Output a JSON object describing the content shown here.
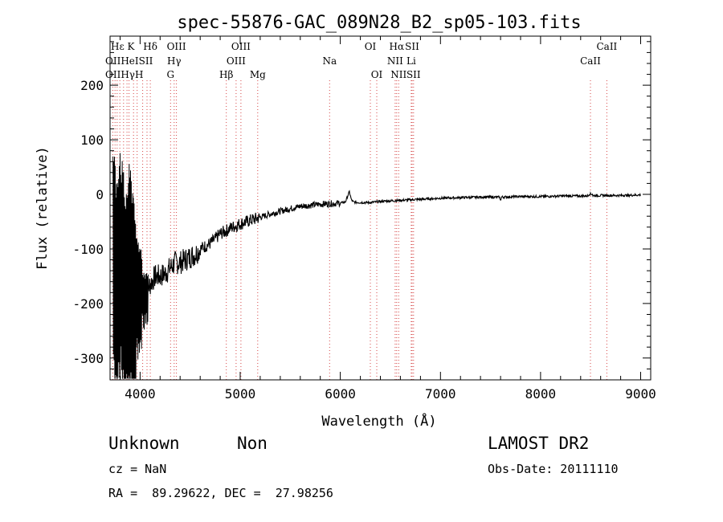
{
  "chart_data": {
    "type": "line",
    "title": "spec-55876-GAC_089N28_B2_sp05-103.fits",
    "xlabel": "Wavelength (Å)",
    "ylabel": "Flux (relative)",
    "xlim": [
      3700,
      9100
    ],
    "ylim": [
      -340,
      290
    ],
    "xticks": [
      4000,
      5000,
      6000,
      7000,
      8000,
      9000
    ],
    "yticks": [
      -300,
      -200,
      -100,
      0,
      100,
      200
    ],
    "grid": false,
    "series": [
      {
        "x": [
          3720,
          3760,
          3800,
          3850,
          3900,
          3950,
          4000,
          4050,
          4100,
          4150,
          4200,
          4250,
          4300,
          4350,
          4400,
          4450,
          4500,
          4550,
          4600,
          4650,
          4700,
          4750,
          4800,
          4850,
          4900,
          4950,
          5000,
          5100,
          5200,
          5300,
          5400,
          5500,
          5600,
          5700,
          5800,
          5900,
          6000,
          6050,
          6090,
          6110,
          6130,
          6200,
          6300,
          6400,
          6500,
          6600,
          6700,
          6800,
          6900,
          7000,
          7200,
          7400,
          7600,
          7800,
          8000,
          8200,
          8400,
          8600,
          8800,
          9000
        ],
        "y": [
          -30,
          -120,
          -60,
          -150,
          -100,
          -160,
          -170,
          -180,
          -165,
          -150,
          -150,
          -145,
          -135,
          -125,
          -125,
          -120,
          -115,
          -110,
          -100,
          -95,
          -90,
          -82,
          -72,
          -68,
          -62,
          -58,
          -54,
          -48,
          -42,
          -36,
          -31,
          -26,
          -22,
          -20,
          -18,
          -17,
          -16,
          -14,
          5,
          -10,
          -14,
          -15,
          -15,
          -13,
          -12,
          -11,
          -10,
          -9,
          -8,
          -7,
          -6,
          -5,
          -5,
          -4,
          -4,
          -3,
          -3,
          -2,
          -2,
          -1
        ]
      }
    ],
    "lines": [
      {
        "label": "Hδ",
        "x": 4102,
        "row": 0
      },
      {
        "label": "OIII",
        "x": 4363,
        "row": 0
      },
      {
        "label": "OIII",
        "x": 5007,
        "row": 0
      },
      {
        "label": "OI",
        "x": 6300,
        "row": 0
      },
      {
        "label": "Hα",
        "x": 6563,
        "row": 0
      },
      {
        "label": "SII",
        "x": 6717,
        "row": 0
      },
      {
        "label": "CaII",
        "x": 8662,
        "row": 0
      },
      {
        "label": "Hγ",
        "x": 4340,
        "row": 1
      },
      {
        "label": "OIII",
        "x": 4959,
        "row": 1
      },
      {
        "label": "Na",
        "x": 5893,
        "row": 1
      },
      {
        "label": "NII",
        "x": 6548,
        "row": 1
      },
      {
        "label": "Li",
        "x": 6708,
        "row": 1
      },
      {
        "label": "CaII",
        "x": 8498,
        "row": 1
      },
      {
        "label": "G",
        "x": 4304,
        "row": 2
      },
      {
        "label": "Hβ",
        "x": 4861,
        "row": 2
      },
      {
        "label": "Mg",
        "x": 5175,
        "row": 2
      },
      {
        "label": "OI",
        "x": 6364,
        "row": 2
      },
      {
        "label": "NII",
        "x": 6583,
        "row": 2
      },
      {
        "label": "SII",
        "x": 6731,
        "row": 2
      }
    ],
    "clustered_label_text": [
      {
        "text": "Hε K",
        "row": 0
      },
      {
        "text": "OIIHeISII",
        "row": 1
      },
      {
        "text": "OIIHγH",
        "row": 2
      }
    ]
  },
  "info": {
    "object_class": "Unknown",
    "object_subclass": "Non",
    "survey": "LAMOST DR2",
    "redshift": "cz = NaN",
    "obs_date": "Obs-Date: 20111110",
    "coords": "RA =  89.29622, DEC =  27.98256"
  }
}
